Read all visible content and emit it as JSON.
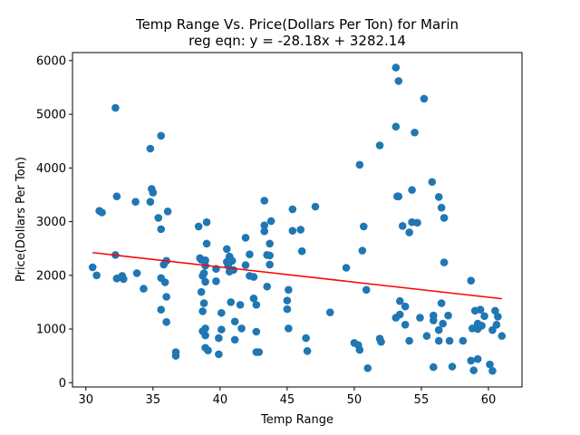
{
  "chart_data": {
    "type": "scatter",
    "title": "Temp Range Vs. Price(Dollars Per Ton) for Marin",
    "subtitle": "reg eqn: y = -28.18x + 3282.14",
    "xlabel": "Temp Range",
    "ylabel": "Price(Dollars Per Ton)",
    "xlim": [
      29.0,
      62.5
    ],
    "ylim": [
      -80,
      6150
    ],
    "xticks": [
      30,
      35,
      40,
      45,
      50,
      55,
      60
    ],
    "yticks": [
      0,
      1000,
      2000,
      3000,
      4000,
      5000,
      6000
    ],
    "grid": false,
    "point_color": "#1f77b4",
    "line_color": "#ff0000",
    "regression": {
      "slope": -28.18,
      "intercept": 3282.14,
      "x_range": [
        30.5,
        61.0
      ]
    },
    "points": [
      [
        30.5,
        2150
      ],
      [
        30.8,
        2000
      ],
      [
        31.0,
        3200
      ],
      [
        31.2,
        3170
      ],
      [
        32.2,
        5120
      ],
      [
        32.2,
        2380
      ],
      [
        32.3,
        3470
      ],
      [
        32.3,
        1940
      ],
      [
        32.7,
        1990
      ],
      [
        32.8,
        1930
      ],
      [
        33.7,
        3370
      ],
      [
        33.8,
        2040
      ],
      [
        34.3,
        1750
      ],
      [
        34.8,
        4360
      ],
      [
        34.8,
        3370
      ],
      [
        34.9,
        3610
      ],
      [
        35.0,
        3540
      ],
      [
        35.4,
        3070
      ],
      [
        35.6,
        4600
      ],
      [
        35.6,
        2860
      ],
      [
        35.6,
        1950
      ],
      [
        35.6,
        1360
      ],
      [
        35.8,
        2200
      ],
      [
        35.9,
        1870
      ],
      [
        36.0,
        2270
      ],
      [
        36.0,
        1600
      ],
      [
        36.0,
        1130
      ],
      [
        36.1,
        3190
      ],
      [
        36.7,
        570
      ],
      [
        36.7,
        500
      ],
      [
        38.4,
        2910
      ],
      [
        38.5,
        2320
      ],
      [
        38.6,
        2290
      ],
      [
        38.6,
        1690
      ],
      [
        38.7,
        1990
      ],
      [
        38.7,
        1330
      ],
      [
        38.7,
        960
      ],
      [
        38.8,
        2040
      ],
      [
        38.8,
        1480
      ],
      [
        38.9,
        2280
      ],
      [
        38.9,
        2180
      ],
      [
        38.9,
        1880
      ],
      [
        38.9,
        1010
      ],
      [
        38.9,
        880
      ],
      [
        38.9,
        650
      ],
      [
        39.0,
        2990
      ],
      [
        39.0,
        2590
      ],
      [
        39.1,
        600
      ],
      [
        39.7,
        2120
      ],
      [
        39.7,
        1890
      ],
      [
        39.9,
        830
      ],
      [
        39.9,
        530
      ],
      [
        40.1,
        1300
      ],
      [
        40.1,
        990
      ],
      [
        40.5,
        2490
      ],
      [
        40.5,
        2250
      ],
      [
        40.6,
        2180
      ],
      [
        40.7,
        2070
      ],
      [
        40.7,
        2350
      ],
      [
        40.8,
        2290
      ],
      [
        40.8,
        1500
      ],
      [
        40.9,
        2270
      ],
      [
        41.0,
        2100
      ],
      [
        41.1,
        1140
      ],
      [
        41.1,
        800
      ],
      [
        41.5,
        1450
      ],
      [
        41.6,
        1010
      ],
      [
        41.9,
        2700
      ],
      [
        41.9,
        2190
      ],
      [
        42.2,
        2390
      ],
      [
        42.2,
        1990
      ],
      [
        42.5,
        1970
      ],
      [
        42.5,
        1570
      ],
      [
        42.7,
        1450
      ],
      [
        42.7,
        950
      ],
      [
        42.7,
        570
      ],
      [
        42.9,
        570
      ],
      [
        43.3,
        3390
      ],
      [
        43.3,
        2930
      ],
      [
        43.3,
        2820
      ],
      [
        43.5,
        2380
      ],
      [
        43.5,
        1790
      ],
      [
        43.7,
        2590
      ],
      [
        43.7,
        2200
      ],
      [
        43.7,
        2370
      ],
      [
        43.8,
        3010
      ],
      [
        45.0,
        1530
      ],
      [
        45.0,
        1370
      ],
      [
        45.1,
        1730
      ],
      [
        45.1,
        1010
      ],
      [
        45.4,
        3230
      ],
      [
        45.4,
        2830
      ],
      [
        46.0,
        2850
      ],
      [
        46.1,
        2450
      ],
      [
        46.4,
        830
      ],
      [
        46.5,
        590
      ],
      [
        47.1,
        3280
      ],
      [
        48.2,
        1310
      ],
      [
        49.4,
        2140
      ],
      [
        50.0,
        740
      ],
      [
        50.3,
        700
      ],
      [
        50.4,
        4060
      ],
      [
        50.4,
        610
      ],
      [
        50.6,
        2460
      ],
      [
        50.7,
        2910
      ],
      [
        50.9,
        1730
      ],
      [
        51.0,
        270
      ],
      [
        51.9,
        4420
      ],
      [
        51.9,
        820
      ],
      [
        52.0,
        760
      ],
      [
        53.1,
        5870
      ],
      [
        53.1,
        4770
      ],
      [
        53.1,
        1210
      ],
      [
        53.2,
        3470
      ],
      [
        53.3,
        5620
      ],
      [
        53.3,
        3470
      ],
      [
        53.4,
        1520
      ],
      [
        53.4,
        1270
      ],
      [
        53.6,
        2920
      ],
      [
        53.8,
        1420
      ],
      [
        53.8,
        1080
      ],
      [
        54.1,
        2800
      ],
      [
        54.1,
        780
      ],
      [
        54.3,
        3590
      ],
      [
        54.3,
        2990
      ],
      [
        54.5,
        4660
      ],
      [
        54.7,
        2980
      ],
      [
        54.9,
        1210
      ],
      [
        55.2,
        5290
      ],
      [
        55.4,
        870
      ],
      [
        55.8,
        3740
      ],
      [
        55.9,
        1250
      ],
      [
        55.9,
        1160
      ],
      [
        55.9,
        290
      ],
      [
        56.3,
        3460
      ],
      [
        56.3,
        980
      ],
      [
        56.3,
        780
      ],
      [
        56.5,
        3260
      ],
      [
        56.5,
        1480
      ],
      [
        56.6,
        1100
      ],
      [
        56.7,
        3070
      ],
      [
        56.7,
        2240
      ],
      [
        57.0,
        1250
      ],
      [
        57.1,
        780
      ],
      [
        57.3,
        300
      ],
      [
        58.1,
        780
      ],
      [
        58.7,
        1900
      ],
      [
        58.7,
        410
      ],
      [
        58.8,
        1010
      ],
      [
        58.9,
        230
      ],
      [
        59.0,
        1340
      ],
      [
        59.1,
        1030
      ],
      [
        59.2,
        1100
      ],
      [
        59.2,
        1000
      ],
      [
        59.2,
        440
      ],
      [
        59.4,
        1360
      ],
      [
        59.5,
        1060
      ],
      [
        59.7,
        1240
      ],
      [
        60.1,
        340
      ],
      [
        60.3,
        980
      ],
      [
        60.3,
        220
      ],
      [
        60.5,
        1340
      ],
      [
        60.6,
        1080
      ],
      [
        60.7,
        1230
      ],
      [
        61.0,
        870
      ]
    ]
  }
}
